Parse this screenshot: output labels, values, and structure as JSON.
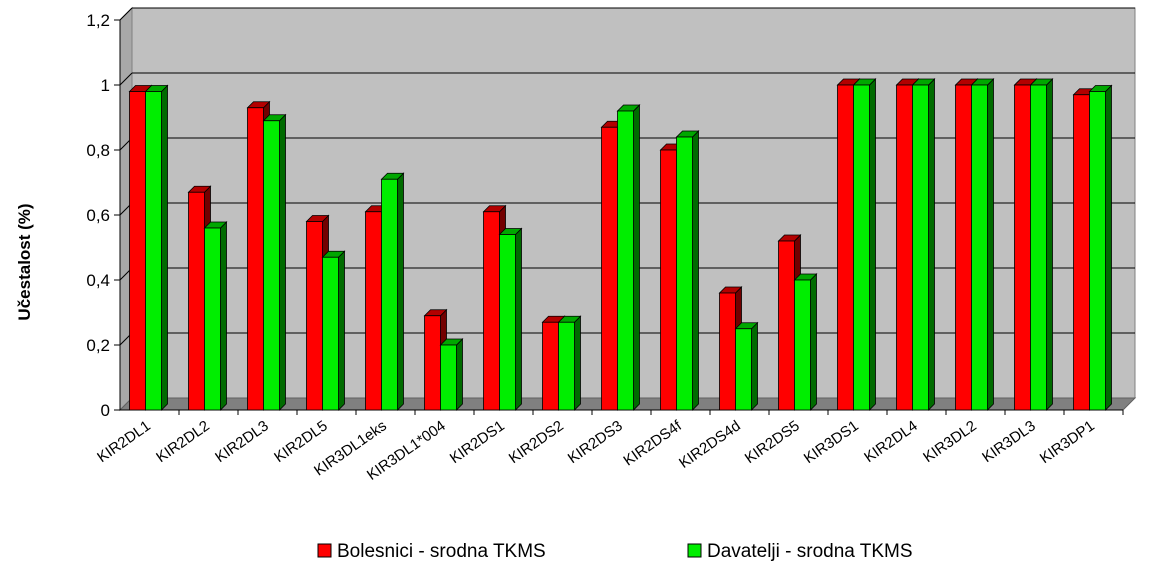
{
  "chart_data": {
    "type": "bar",
    "ylabel": "Učestalost (%)",
    "ylim": [
      0,
      1.2
    ],
    "yticks": [
      0,
      0.2,
      0.4,
      0.6,
      0.8,
      1,
      1.2
    ],
    "ytick_labels": [
      "0",
      "0,2",
      "0,4",
      "0,6",
      "0,8",
      "1",
      "1,2"
    ],
    "grid": true,
    "legend_position": "bottom",
    "categories": [
      "KIR2DL1",
      "KIR2DL2",
      "KIR2DL3",
      "KIR2DL5",
      "KIR3DL1eks",
      "KIR3DL1*004",
      "KIR2DS1",
      "KIR2DS2",
      "KIR2DS3",
      "KIR2DS4f",
      "KIR2DS4d",
      "KIR2DS5",
      "KIR3DS1",
      "KIR2DL4",
      "KIR3DL2",
      "KIR3DL3",
      "KIR3DP1"
    ],
    "series": [
      {
        "name": "Bolesnici - srodna TKMS",
        "color": "#ff0000",
        "values": [
          0.98,
          0.67,
          0.93,
          0.58,
          0.61,
          0.29,
          0.61,
          0.27,
          0.87,
          0.8,
          0.36,
          0.52,
          1.0,
          1.0,
          1.0,
          1.0,
          0.97
        ]
      },
      {
        "name": "Davatelji - srodna TKMS",
        "color": "#00ee00",
        "values": [
          0.98,
          0.56,
          0.89,
          0.47,
          0.71,
          0.2,
          0.54,
          0.27,
          0.92,
          0.84,
          0.25,
          0.4,
          1.0,
          1.0,
          1.0,
          1.0,
          0.98
        ]
      }
    ]
  }
}
